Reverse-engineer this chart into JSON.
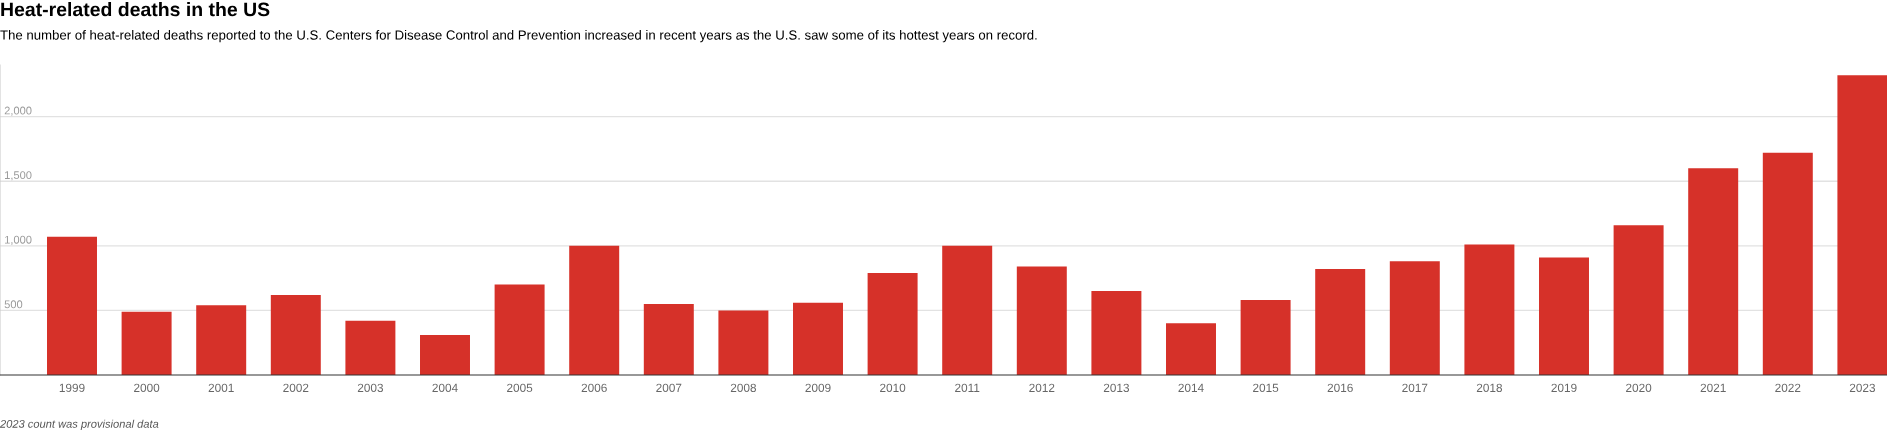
{
  "chart_data": {
    "type": "bar",
    "title": "Heat-related deaths in the US",
    "subtitle": "The number of heat-related deaths reported to the U.S. Centers for Disease Control and Prevention increased in recent years as the U.S. saw some of its hottest years on record.",
    "categories": [
      "1999",
      "2000",
      "2001",
      "2002",
      "2003",
      "2004",
      "2005",
      "2006",
      "2007",
      "2008",
      "2009",
      "2010",
      "2011",
      "2012",
      "2013",
      "2014",
      "2015",
      "2016",
      "2017",
      "2018",
      "2019",
      "2020",
      "2021",
      "2022",
      "2023"
    ],
    "values": [
      1070,
      490,
      540,
      620,
      420,
      310,
      700,
      1000,
      550,
      500,
      560,
      790,
      1000,
      840,
      650,
      400,
      580,
      820,
      880,
      1010,
      910,
      1160,
      1600,
      1720,
      2320
    ],
    "color": "#d63129",
    "ylim": [
      0,
      2400
    ],
    "yticks": [
      {
        "value": 500,
        "label": "500"
      },
      {
        "value": 1000,
        "label": "1,000"
      },
      {
        "value": 1500,
        "label": "1,500"
      },
      {
        "value": 2000,
        "label": "2,000"
      }
    ],
    "grid": "y",
    "annotations": [
      "2023 count was provisional data"
    ]
  }
}
